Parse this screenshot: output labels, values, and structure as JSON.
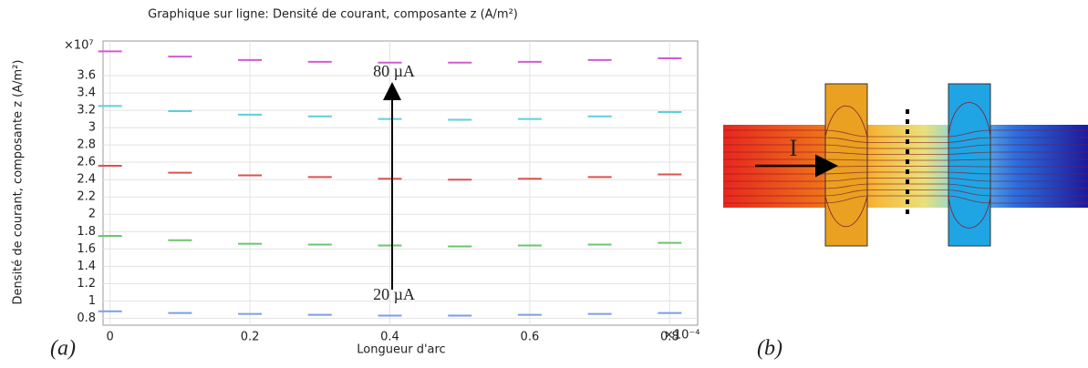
{
  "chart_data": {
    "type": "dash",
    "title": "Graphique sur ligne: Densité de courant, composante z (A/m²)",
    "y_label": "Densité de courant, composante z (A/m²)",
    "x_label": "Longueur d'arc",
    "y_multiplier": "×10⁷",
    "x_multiplier": "×10⁻⁴",
    "panel_label": "(a)",
    "annotations": [
      "80 µA",
      "20 µA"
    ],
    "x": [
      0,
      0.1,
      0.2,
      0.3,
      0.4,
      0.5,
      0.6,
      0.7,
      0.8
    ],
    "series": [
      {
        "color": "#d45ad0",
        "values": [
          3.88,
          3.82,
          3.78,
          3.76,
          3.75,
          3.75,
          3.76,
          3.78,
          3.8
        ]
      },
      {
        "color": "#5ccfdc",
        "values": [
          3.25,
          3.19,
          3.15,
          3.13,
          3.1,
          3.09,
          3.1,
          3.13,
          3.18
        ]
      },
      {
        "color": "#d9534f",
        "values": [
          2.56,
          2.48,
          2.45,
          2.43,
          2.41,
          2.4,
          2.41,
          2.43,
          2.46
        ]
      },
      {
        "color": "#6cc46c",
        "values": [
          1.75,
          1.7,
          1.66,
          1.65,
          1.64,
          1.63,
          1.64,
          1.65,
          1.67
        ]
      },
      {
        "color": "#7a9ee8",
        "values": [
          0.88,
          0.86,
          0.85,
          0.84,
          0.83,
          0.83,
          0.84,
          0.85,
          0.86
        ]
      }
    ],
    "xlim": [
      -0.01,
      0.84
    ],
    "ylim": [
      0.72,
      4.0
    ],
    "xticks": [
      0,
      0.2,
      0.4,
      0.6,
      0.8
    ],
    "yticks": [
      0.8,
      1,
      1.2,
      1.4,
      1.6,
      1.8,
      2,
      2.2,
      2.4,
      2.6,
      2.8,
      3,
      3.2,
      3.4,
      3.6
    ],
    "grid": true
  },
  "diagram": {
    "current_label": "I",
    "panel_label": "(b)"
  }
}
